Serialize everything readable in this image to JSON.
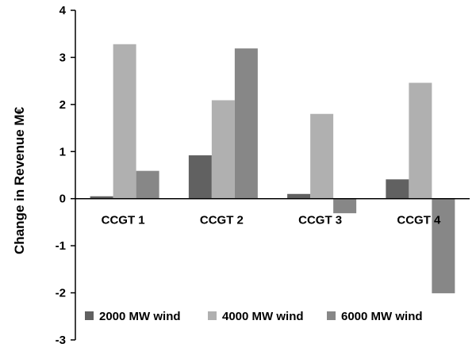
{
  "chart_data": {
    "type": "bar",
    "title": "",
    "xlabel": "",
    "ylabel": "Change in Revenue M€",
    "ylim": [
      -3,
      4
    ],
    "yticks": [
      4,
      3,
      2,
      1,
      0,
      -1,
      -2,
      -3
    ],
    "grid": false,
    "legend_position": "bottom",
    "categories": [
      "CCGT 1",
      "CCGT 2",
      "CCGT 3",
      "CCGT 4"
    ],
    "series": [
      {
        "name": "2000 MW wind",
        "color": "#616161",
        "values": [
          0.05,
          0.92,
          0.1,
          0.41
        ]
      },
      {
        "name": "4000 MW wind",
        "color": "#b0b0b0",
        "values": [
          3.28,
          2.09,
          1.8,
          2.46
        ]
      },
      {
        "name": "6000 MW wind",
        "color": "#878787",
        "values": [
          0.59,
          3.19,
          -0.31,
          -2.01
        ]
      }
    ]
  }
}
